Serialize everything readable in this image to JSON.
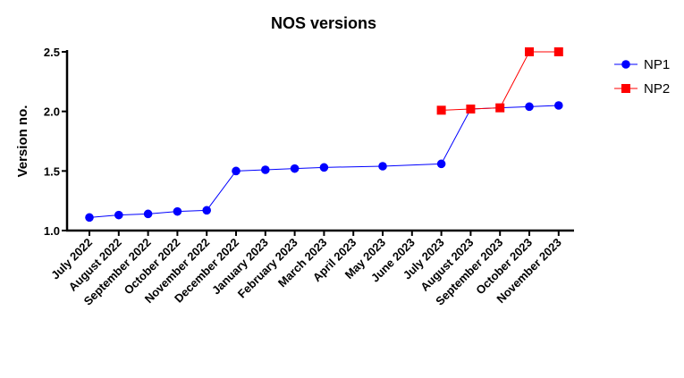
{
  "chart_data": {
    "type": "line",
    "title": "NOS versions",
    "xlabel": "",
    "ylabel": "Version no.",
    "ylim": [
      1.0,
      2.5
    ],
    "yticks": [
      "1.0",
      "1.5",
      "2.0",
      "2.5"
    ],
    "categories": [
      "July 2022",
      "August 2022",
      "September 2022",
      "October 2022",
      "November 2022",
      "December 2022",
      "January 2023",
      "February 2023",
      "March 2023",
      "April 2023",
      "May 2023",
      "June 2023",
      "July 2023",
      "August 2023",
      "September 2023",
      "October 2023",
      "November 2023"
    ],
    "legend_position": "right",
    "series": [
      {
        "name": "NP1",
        "color": "#0000ff",
        "marker": "circle",
        "values": [
          1.11,
          1.13,
          1.14,
          1.16,
          1.17,
          1.5,
          1.51,
          1.52,
          1.53,
          null,
          1.54,
          null,
          1.56,
          2.02,
          2.03,
          2.04,
          2.05
        ]
      },
      {
        "name": "NP2",
        "color": "#ff0000",
        "marker": "square",
        "values": [
          null,
          null,
          null,
          null,
          null,
          null,
          null,
          null,
          null,
          null,
          null,
          null,
          2.01,
          2.02,
          2.03,
          2.5,
          2.5
        ]
      }
    ]
  }
}
